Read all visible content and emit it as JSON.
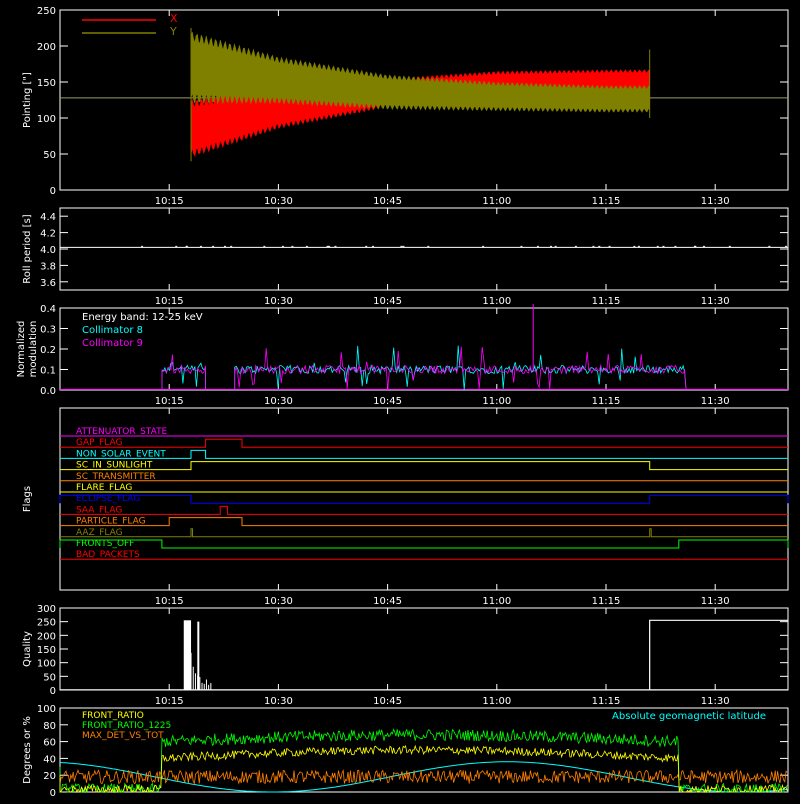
{
  "colors": {
    "background": "#000000",
    "axes": "#ffffff",
    "x_series": "#ff0000",
    "y_series": "#808000",
    "cyan": "#00ffff",
    "magenta": "#ff00ff",
    "green": "#00ff00",
    "yellow": "#ffff00",
    "orange": "#ff8000",
    "blue": "#0000ff",
    "red": "#ff0000"
  },
  "chart_data": [
    {
      "id": "pointing",
      "type": "area",
      "ylabel": "Pointing [\"]",
      "ylim": [
        0,
        250
      ],
      "yticks": [
        "0",
        "50",
        "100",
        "150",
        "200",
        "250"
      ],
      "x_ticks": [
        "10:15",
        "10:30",
        "10:45",
        "11:00",
        "11:15",
        "11:30"
      ],
      "legend": [
        "X",
        "Y"
      ],
      "reference_line": 128,
      "series": [
        {
          "name": "X",
          "envelope": [
            {
              "t": "10:18",
              "lo": 45,
              "hi": 125
            },
            {
              "t": "10:30",
              "lo": 85,
              "hi": 140
            },
            {
              "t": "10:45",
              "lo": 115,
              "hi": 155
            },
            {
              "t": "11:00",
              "lo": 130,
              "hi": 165
            },
            {
              "t": "11:15",
              "lo": 135,
              "hi": 167
            },
            {
              "t": "11:21",
              "lo": 135,
              "hi": 167
            }
          ]
        },
        {
          "name": "Y",
          "envelope": [
            {
              "t": "10:18",
              "lo": 120,
              "hi": 220
            },
            {
              "t": "10:30",
              "lo": 120,
              "hi": 185
            },
            {
              "t": "10:45",
              "lo": 112,
              "hi": 160
            },
            {
              "t": "11:00",
              "lo": 110,
              "hi": 150
            },
            {
              "t": "11:15",
              "lo": 108,
              "hi": 145
            },
            {
              "t": "11:21",
              "lo": 108,
              "hi": 145
            }
          ]
        }
      ]
    },
    {
      "id": "roll",
      "type": "line",
      "ylabel": "Roll period [s]",
      "ylim": [
        3.5,
        4.5
      ],
      "yticks": [
        "3.6",
        "3.8",
        "4.0",
        "4.2",
        "4.4"
      ],
      "x_ticks": [
        "10:15",
        "10:30",
        "10:45",
        "11:00",
        "11:15",
        "11:30"
      ],
      "values": [
        {
          "t": "10:00",
          "v": 4.02
        },
        {
          "t": "11:40",
          "v": 4.02
        }
      ]
    },
    {
      "id": "modulation",
      "type": "line",
      "ylabel": "Normalized modulation",
      "ylim": [
        0,
        0.4
      ],
      "yticks": [
        "0.0",
        "0.1",
        "0.2",
        "0.3",
        "0.4"
      ],
      "x_ticks": [
        "10:15",
        "10:30",
        "10:45",
        "11:00",
        "11:15",
        "11:30"
      ],
      "annotation": "Energy band: 12-25 keV",
      "legend": [
        "Collimator 8",
        "Collimator 9"
      ],
      "segments": [
        {
          "start": "10:14",
          "end": "10:20",
          "level": 0.1
        },
        {
          "start": "10:24",
          "end": "11:26",
          "level": 0.1
        }
      ]
    },
    {
      "id": "flags",
      "type": "line",
      "ylabel": "Flags",
      "x_ticks": [
        "10:15",
        "10:30",
        "10:45",
        "11:00",
        "11:15",
        "11:30"
      ],
      "flags": [
        {
          "name": "ATTENUATOR_STATE",
          "color": "#ff00ff",
          "high": []
        },
        {
          "name": "GAP_FLAG",
          "color": "#ff0000",
          "high": [
            [
              "10:20",
              "10:25"
            ]
          ]
        },
        {
          "name": "NON_SOLAR_EVENT",
          "color": "#00ffff",
          "high": [
            [
              "10:18",
              "10:20"
            ]
          ]
        },
        {
          "name": "SC_IN_SUNLIGHT",
          "color": "#ffff00",
          "high": [
            [
              "10:18",
              "11:21"
            ]
          ]
        },
        {
          "name": "SC_TRANSMITTER",
          "color": "#ff8000",
          "high": []
        },
        {
          "name": "FLARE_FLAG",
          "color": "#ffff00",
          "high": []
        },
        {
          "name": "ECLIPSE_FLAG",
          "color": "#0000ff",
          "high": [
            [
              "10:00",
              "10:18"
            ],
            [
              "11:21",
              "11:40"
            ]
          ]
        },
        {
          "name": "SAA_FLAG",
          "color": "#ff0000",
          "high": [
            [
              "10:22",
              "10:23"
            ]
          ]
        },
        {
          "name": "PARTICLE_FLAG",
          "color": "#ff8000",
          "high": [
            [
              "10:15",
              "10:25"
            ]
          ]
        },
        {
          "name": "AAZ_FLAG",
          "color": "#808000",
          "high": [
            [
              "10:18",
              "10:18"
            ],
            [
              "11:21",
              "11:21"
            ]
          ]
        },
        {
          "name": "FRONTS_OFF",
          "color": "#00ff00",
          "high": [
            [
              "10:00",
              "10:14"
            ],
            [
              "11:25",
              "11:40"
            ]
          ]
        },
        {
          "name": "BAD_PACKETS",
          "color": "#ff0000",
          "high": []
        }
      ]
    },
    {
      "id": "quality",
      "type": "bar",
      "ylabel": "Quality",
      "ylim": [
        0,
        300
      ],
      "yticks": [
        "0",
        "50",
        "100",
        "150",
        "200",
        "250",
        "300"
      ],
      "x_ticks": [
        "10:15",
        "10:30",
        "10:45",
        "11:00",
        "11:15",
        "11:30"
      ],
      "levels": [
        {
          "start": "10:17",
          "end": "10:18",
          "v": 255
        },
        {
          "start": "10:19",
          "end": "10:19",
          "v": 250
        },
        {
          "start": "11:21",
          "end": "11:40",
          "v": 255
        }
      ]
    },
    {
      "id": "ratios",
      "type": "line",
      "ylabel": "Degrees or %",
      "ylim": [
        0,
        100
      ],
      "yticks": [
        "0",
        "20",
        "40",
        "60",
        "80",
        "100"
      ],
      "legend": [
        "FRONT_RATIO",
        "FRONT_RATIO_1225",
        "MAX_DET_VS_TOT"
      ],
      "right_legend": "Absolute geomagnetic latitude",
      "series": [
        {
          "name": "FRONT_RATIO",
          "approx_level": 40
        },
        {
          "name": "FRONT_RATIO_1225",
          "approx_level": 60
        },
        {
          "name": "MAX_DET_VS_TOT",
          "approx_level": 18
        }
      ]
    }
  ]
}
